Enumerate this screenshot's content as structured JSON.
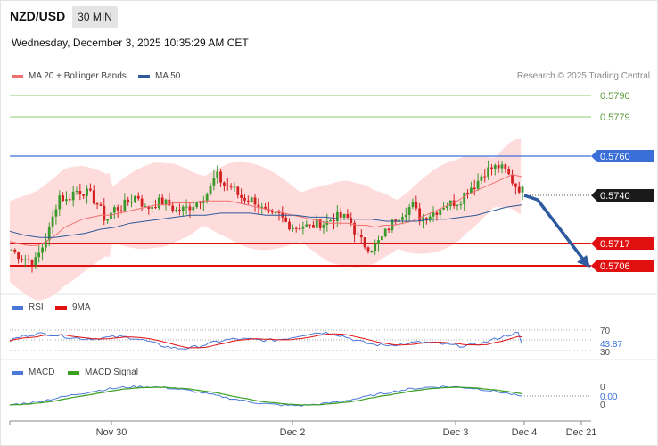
{
  "header": {
    "symbol": "NZD/USD",
    "timeframe": "30 MIN",
    "datetime": "Wednesday, December 3, 2025 10:35:29 AM CET"
  },
  "legend": {
    "ma20": "MA 20 + Bollinger Bands",
    "ma50": "MA 50",
    "copyright": "Research © 2025 Trading Central"
  },
  "price_levels": {
    "r3": "0.5790",
    "r2": "0.5779",
    "r1": "0.5760",
    "current": "0.5740",
    "s1": "0.5717",
    "s2": "0.5706"
  },
  "rsi": {
    "legend_rsi": "RSI",
    "legend_ma": "9MA",
    "level_high": "70",
    "level_low": "30",
    "value": "43.87"
  },
  "macd": {
    "legend_macd": "MACD",
    "legend_signal": "MACD Signal",
    "zero_top": "0",
    "zero_bottom": "0",
    "value": "0.00"
  },
  "x_axis": {
    "labels": [
      "Nov 30",
      "Dec 2",
      "Dec 3",
      "Dec 4",
      "Dec 21"
    ]
  },
  "colors": {
    "bull": "#3a9a2e",
    "bear": "#d42020",
    "band_fill": "#ffd6d6",
    "ma20": "#f07070",
    "ma50": "#2c5a9a",
    "resistance_upper": "#8ccd70",
    "resistance": "#3a6fd8",
    "support": "#e01010",
    "forecast_arrow": "#2d5aa0",
    "rsi": "#4a78d8",
    "rsi_ma": "#e01010",
    "macd": "#4a78d8",
    "macd_signal": "#3aa020"
  },
  "chart_data": {
    "type": "candlestick",
    "symbol": "NZD/USD",
    "timeframe": "30 MIN",
    "ylim": [
      0.57,
      0.5795
    ],
    "horizontal_levels": [
      0.579,
      0.5779,
      0.576,
      0.574,
      0.5717,
      0.5706
    ],
    "x_ticks": [
      "Nov 30",
      "Dec 2",
      "Dec 3",
      "Dec 4",
      "Dec 21"
    ],
    "close_path": [
      0.5714,
      0.5711,
      0.5709,
      0.5708,
      0.5716,
      0.5726,
      0.5741,
      0.5738,
      0.5743,
      0.5743,
      0.5741,
      0.5736,
      0.5728,
      0.5734,
      0.5735,
      0.5738,
      0.5741,
      0.5734,
      0.5736,
      0.5738,
      0.5736,
      0.5733,
      0.5734,
      0.5736,
      0.5739,
      0.5742,
      0.5751,
      0.5746,
      0.5745,
      0.574,
      0.5739,
      0.5738,
      0.5733,
      0.573,
      0.5731,
      0.5727,
      0.5725,
      0.5726,
      0.5725,
      0.5727,
      0.5727,
      0.573,
      0.573,
      0.5729,
      0.572,
      0.5716,
      0.5715,
      0.5719,
      0.5725,
      0.573,
      0.5733,
      0.5736,
      0.5729,
      0.5731,
      0.5733,
      0.5736,
      0.5737,
      0.5738,
      0.5744,
      0.5746,
      0.5752,
      0.5754,
      0.5755,
      0.5752,
      0.5746,
      0.5743
    ],
    "ma20_path": [
      0.5718,
      0.5717,
      0.5716,
      0.5716,
      0.5718,
      0.5721,
      0.5725,
      0.5727,
      0.5729,
      0.573,
      0.5731,
      0.5731,
      0.5732,
      0.5733,
      0.5734,
      0.5735,
      0.5736,
      0.5736,
      0.5737,
      0.5737,
      0.5737,
      0.5738,
      0.5738,
      0.5738,
      0.5738,
      0.5737,
      0.5736,
      0.5735,
      0.5734,
      0.5733,
      0.5732,
      0.5731,
      0.573,
      0.5729,
      0.5728,
      0.5727,
      0.5727,
      0.5727,
      0.5726,
      0.5726,
      0.5725,
      0.5726,
      0.5726,
      0.5727,
      0.5728,
      0.573,
      0.5732,
      0.5734,
      0.5736,
      0.5738,
      0.5741,
      0.5743,
      0.5745,
      0.5747,
      0.5749,
      0.5751,
      0.575
    ],
    "ma50_path": [
      0.5723,
      0.5721,
      0.572,
      0.572,
      0.5721,
      0.5722,
      0.5724,
      0.5725,
      0.5727,
      0.5728,
      0.5729,
      0.573,
      0.5731,
      0.5731,
      0.5732,
      0.5732,
      0.5732,
      0.5731,
      0.5731,
      0.5731,
      0.573,
      0.573,
      0.5729,
      0.5729,
      0.5729,
      0.5728,
      0.5728,
      0.5728,
      0.5729,
      0.5729,
      0.573,
      0.5731,
      0.5733,
      0.5735,
      0.5736
    ],
    "forecast": {
      "from": 0.574,
      "to": 0.5706
    },
    "rsi": {
      "value": 43.87,
      "levels": [
        30,
        70
      ]
    },
    "macd": {
      "value": 0.0
    }
  }
}
